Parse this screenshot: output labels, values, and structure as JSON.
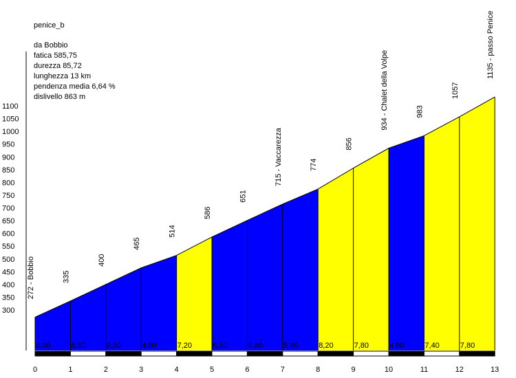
{
  "chart_data": {
    "type": "area",
    "title": "penice_b",
    "info": {
      "start": "da Bobbio",
      "fatica": "fatica 585,75",
      "durezza": "durezza 85,72",
      "lunghezza": "lunghezza 13 km",
      "pendenza": "pendenza media 6,64 %",
      "dislivello": "dislivello 863 m"
    },
    "x": [
      0,
      1,
      2,
      3,
      4,
      5,
      6,
      7,
      8,
      9,
      10,
      11,
      12,
      13
    ],
    "x_tick_labels": [
      "0",
      "1",
      "2",
      "3",
      "4",
      "5",
      "6",
      "7",
      "8",
      "9",
      "10",
      "11",
      "12",
      "13"
    ],
    "altitudes": [
      272,
      335,
      400,
      465,
      514,
      586,
      651,
      715,
      774,
      856,
      934,
      983,
      1057,
      1135
    ],
    "point_labels": [
      "272 - Bobbio",
      "335",
      "400",
      "465",
      "514",
      "586",
      "651",
      "715 - Vaccarezza",
      "774",
      "856",
      "934 - Chalet della Volpe",
      "983",
      "1057",
      "1135 - passo Penice"
    ],
    "gradients": [
      "6,30",
      "6,50",
      "6,50",
      "4,90",
      "7,20",
      "6,50",
      "6,40",
      "5,90",
      "8,20",
      "7,80",
      "4,90",
      "7,40",
      "7,80"
    ],
    "segment_colors": [
      "#0000ff",
      "#0000ff",
      "#0000ff",
      "#0000ff",
      "#ffff00",
      "#0000ff",
      "#0000ff",
      "#0000ff",
      "#ffff00",
      "#ffff00",
      "#0000ff",
      "#ffff00",
      "#ffff00"
    ],
    "y_ticks": [
      "300",
      "350",
      "400",
      "450",
      "500",
      "550",
      "600",
      "650",
      "700",
      "750",
      "800",
      "850",
      "900",
      "950",
      "1000",
      "1050",
      "1100"
    ],
    "ylim": [
      300,
      1100
    ],
    "xlim": [
      0,
      13
    ]
  }
}
